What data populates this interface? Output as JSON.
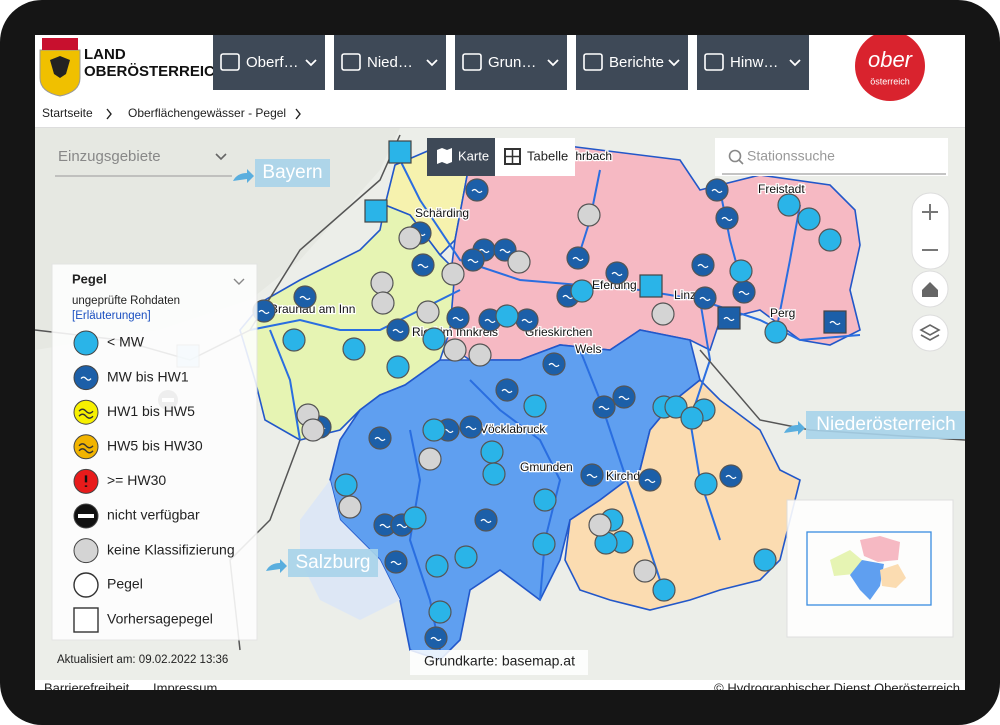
{
  "header": {
    "brand": [
      "LAND",
      "OBERÖSTERREICH"
    ],
    "nav": [
      "Oberf…",
      "Nied…",
      "Grun…",
      "Berichte",
      "Hinw…"
    ],
    "logo": [
      "ober",
      "österreich"
    ]
  },
  "breadcrumb": [
    "Startseite",
    "Oberflächengewässer - Pegel"
  ],
  "map": {
    "catchment_select": "Einzugsgebiete",
    "views": [
      "Karte",
      "Tabelle"
    ],
    "search_placeholder": "Stationssuche",
    "regions": [
      "Bayern",
      "Niederösterreich",
      "Salzburg"
    ],
    "places": [
      "Rohrbach",
      "Schärding",
      "Freistadt",
      "Braunau am Inn",
      "Ried im Innkreis",
      "Eferding",
      "Grieskirchen",
      "Linz",
      "Perg",
      "Wels",
      "Vöcklabruck",
      "Gmunden",
      "Kirchdorf"
    ],
    "updated": "Aktualisiert am: 09.02.2022 13:36",
    "basemap": "Grundkarte: basemap.at"
  },
  "legend": {
    "title": "Pegel",
    "subtitle": "ungeprüfte Rohdaten",
    "link": "[Erläuterungen]",
    "items": [
      "< MW",
      "MW bis HW1",
      "HW1 bis HW5",
      "HW5 bis HW30",
      ">= HW30",
      "nicht verfügbar",
      "keine Klassifizierung"
    ],
    "shapes": [
      "Pegel",
      "Vorhersagepegel"
    ]
  },
  "footer": {
    "links": [
      "Barrierefreiheit",
      "Impressum"
    ],
    "copyright": "© Hydrographischer Dienst Oberösterreich"
  }
}
